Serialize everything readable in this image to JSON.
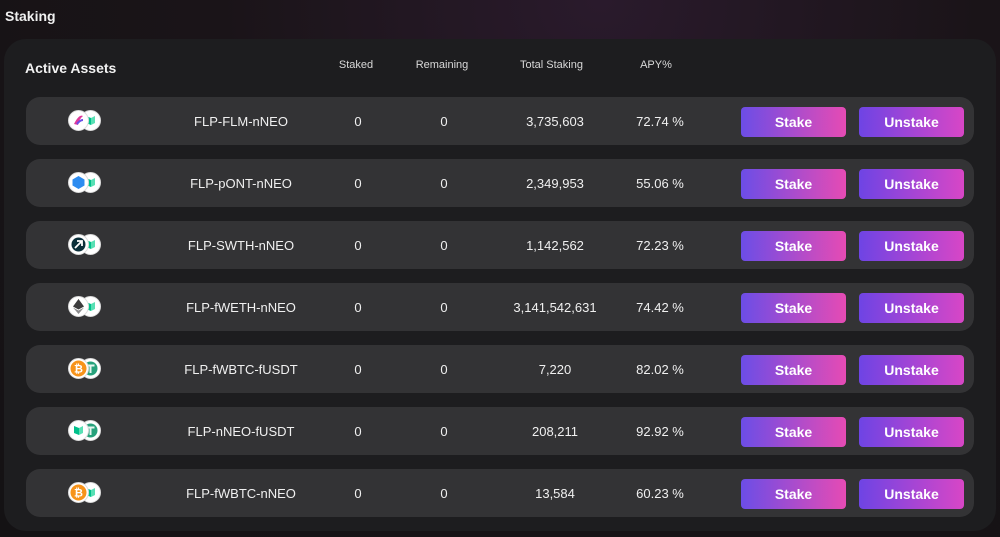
{
  "page": {
    "title": "Staking"
  },
  "header": {
    "title": "Active Assets",
    "columns": {
      "staked": "Staked",
      "remaining": "Remaining",
      "total": "Total Staking",
      "apy": "APY%"
    }
  },
  "buttons": {
    "stake": "Stake",
    "unstake": "Unstake"
  },
  "rows": [
    {
      "pair": "FLP-FLM-nNEO",
      "staked": "0",
      "remaining": "0",
      "total": "3,735,603",
      "apy": "72.74 %",
      "icon_a": "flm-icon",
      "icon_b": "neo-icon"
    },
    {
      "pair": "FLP-pONT-nNEO",
      "staked": "0",
      "remaining": "0",
      "total": "2,349,953",
      "apy": "55.06 %",
      "icon_a": "ont-icon",
      "icon_b": "neo-icon"
    },
    {
      "pair": "FLP-SWTH-nNEO",
      "staked": "0",
      "remaining": "0",
      "total": "1,142,562",
      "apy": "72.23 %",
      "icon_a": "swth-icon",
      "icon_b": "neo-icon"
    },
    {
      "pair": "FLP-fWETH-nNEO",
      "staked": "0",
      "remaining": "0",
      "total": "3,141,542,631",
      "apy": "74.42 %",
      "icon_a": "eth-icon",
      "icon_b": "neo-icon"
    },
    {
      "pair": "FLP-fWBTC-fUSDT",
      "staked": "0",
      "remaining": "0",
      "total": "7,220",
      "apy": "82.02 %",
      "icon_a": "btc-icon",
      "icon_b": "usdt-icon"
    },
    {
      "pair": "FLP-nNEO-fUSDT",
      "staked": "0",
      "remaining": "0",
      "total": "208,211",
      "apy": "92.92 %",
      "icon_a": "neo-icon",
      "icon_b": "usdt-icon"
    },
    {
      "pair": "FLP-fWBTC-nNEO",
      "staked": "0",
      "remaining": "0",
      "total": "13,584",
      "apy": "60.23 %",
      "icon_a": "btc-icon",
      "icon_b": "neo-icon"
    }
  ],
  "colors": {
    "accent_start": "#6c4de6",
    "accent_end": "#e64bb4",
    "neo": "#00c08b",
    "btc": "#f7931a",
    "eth": "#3c3c3d",
    "ont": "#2d8cf0",
    "usdt": "#26a17b",
    "flm": "#e0399a"
  }
}
